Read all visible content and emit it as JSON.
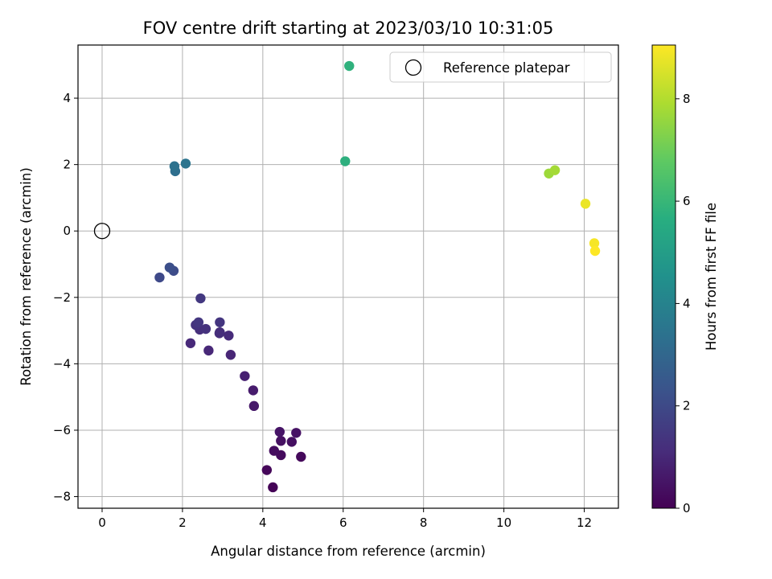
{
  "chart_data": {
    "type": "scatter",
    "title": "FOV centre drift starting at 2023/03/10 10:31:05",
    "xlabel": "Angular distance from reference (arcmin)",
    "ylabel": "Rotation from reference (arcmin)",
    "xlim": [
      -0.6,
      12.85
    ],
    "ylim": [
      -8.35,
      5.6
    ],
    "xticks": [
      0,
      2,
      4,
      6,
      8,
      10,
      12
    ],
    "yticks": [
      -8,
      -6,
      -4,
      -2,
      0,
      2,
      4
    ],
    "xtick_labels": [
      "0",
      "2",
      "4",
      "6",
      "8",
      "10",
      "12"
    ],
    "ytick_labels": [
      "−8",
      "−6",
      "−4",
      "−2",
      "0",
      "2",
      "4"
    ],
    "grid": true,
    "legend": {
      "position": "top-right",
      "entries": [
        {
          "label": "Reference platepar",
          "marker": "open-circle",
          "color": "#000000"
        }
      ]
    },
    "reference_point": {
      "x": 0,
      "y": 0
    },
    "colorbar": {
      "label": "Hours from first FF file",
      "colormap": "viridis",
      "range": [
        0,
        9.05
      ],
      "ticks": [
        0,
        2,
        4,
        6,
        8
      ],
      "tick_labels": [
        "0",
        "2",
        "4",
        "6",
        "8"
      ]
    },
    "points": [
      {
        "x": 4.25,
        "y": -7.72,
        "hours": 0.05
      },
      {
        "x": 4.1,
        "y": -7.2,
        "hours": 0.15
      },
      {
        "x": 4.95,
        "y": -6.8,
        "hours": 0.2
      },
      {
        "x": 4.45,
        "y": -6.75,
        "hours": 0.25
      },
      {
        "x": 4.28,
        "y": -6.62,
        "hours": 0.3
      },
      {
        "x": 4.72,
        "y": -6.35,
        "hours": 0.35
      },
      {
        "x": 4.45,
        "y": -6.32,
        "hours": 0.4
      },
      {
        "x": 4.83,
        "y": -6.08,
        "hours": 0.45
      },
      {
        "x": 4.42,
        "y": -6.05,
        "hours": 0.5
      },
      {
        "x": 3.78,
        "y": -5.27,
        "hours": 0.6
      },
      {
        "x": 3.76,
        "y": -4.8,
        "hours": 0.7
      },
      {
        "x": 3.55,
        "y": -4.37,
        "hours": 0.8
      },
      {
        "x": 3.2,
        "y": -3.73,
        "hours": 0.95
      },
      {
        "x": 2.65,
        "y": -3.6,
        "hours": 1.0
      },
      {
        "x": 2.2,
        "y": -3.38,
        "hours": 1.05
      },
      {
        "x": 3.15,
        "y": -3.15,
        "hours": 1.1
      },
      {
        "x": 2.92,
        "y": -3.08,
        "hours": 1.15
      },
      {
        "x": 2.93,
        "y": -3.05,
        "hours": 1.2
      },
      {
        "x": 2.43,
        "y": -2.97,
        "hours": 1.25
      },
      {
        "x": 2.58,
        "y": -2.95,
        "hours": 1.3
      },
      {
        "x": 2.33,
        "y": -2.83,
        "hours": 1.35
      },
      {
        "x": 2.93,
        "y": -2.75,
        "hours": 1.4
      },
      {
        "x": 2.4,
        "y": -2.75,
        "hours": 1.45
      },
      {
        "x": 2.45,
        "y": -2.03,
        "hours": 1.5
      },
      {
        "x": 1.43,
        "y": -1.4,
        "hours": 2.0
      },
      {
        "x": 1.78,
        "y": -1.2,
        "hours": 2.1
      },
      {
        "x": 1.68,
        "y": -1.1,
        "hours": 2.2
      },
      {
        "x": 1.82,
        "y": 1.8,
        "hours": 3.3
      },
      {
        "x": 1.8,
        "y": 1.95,
        "hours": 3.4
      },
      {
        "x": 2.08,
        "y": 2.03,
        "hours": 3.5
      },
      {
        "x": 6.05,
        "y": 2.1,
        "hours": 5.7
      },
      {
        "x": 6.15,
        "y": 4.97,
        "hours": 5.8
      },
      {
        "x": 11.12,
        "y": 1.73,
        "hours": 7.7
      },
      {
        "x": 11.27,
        "y": 1.83,
        "hours": 7.8
      },
      {
        "x": 12.03,
        "y": 0.82,
        "hours": 8.8
      },
      {
        "x": 12.25,
        "y": -0.37,
        "hours": 8.95
      },
      {
        "x": 12.27,
        "y": -0.6,
        "hours": 9.05
      }
    ]
  }
}
